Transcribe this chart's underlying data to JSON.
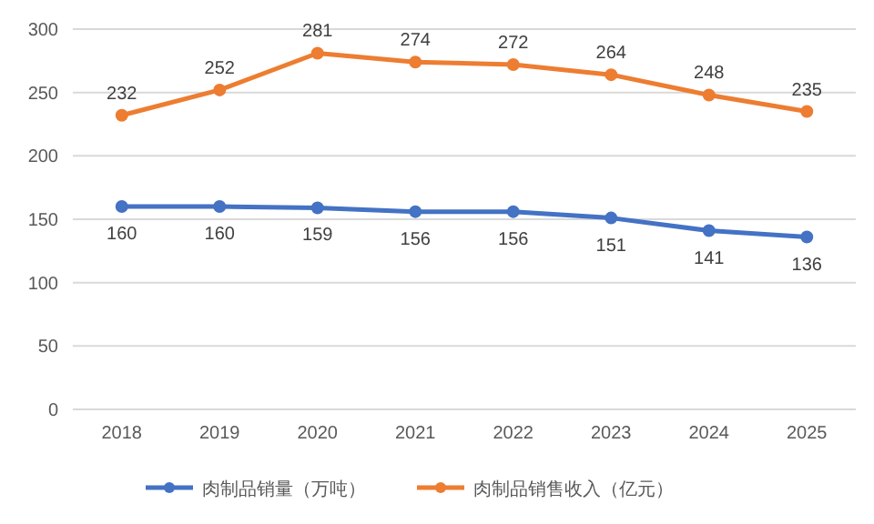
{
  "chart_data": {
    "type": "line",
    "categories": [
      "2018",
      "2019",
      "2020",
      "2021",
      "2022",
      "2023",
      "2024",
      "2025"
    ],
    "series": [
      {
        "name": "肉制品销量（万吨）",
        "color": "#4472c4",
        "values": [
          160,
          160,
          159,
          156,
          156,
          151,
          141,
          136
        ]
      },
      {
        "name": "肉制品销售收入（亿元）",
        "color": "#ed7d31",
        "values": [
          232,
          252,
          281,
          274,
          272,
          264,
          248,
          235
        ]
      }
    ],
    "ylim": [
      0,
      300
    ],
    "yticks": [
      0,
      50,
      100,
      150,
      200,
      250,
      300
    ],
    "grid": "y",
    "legend": "bottom",
    "marker": "circle",
    "line_style": "solid",
    "data_labels": true
  }
}
